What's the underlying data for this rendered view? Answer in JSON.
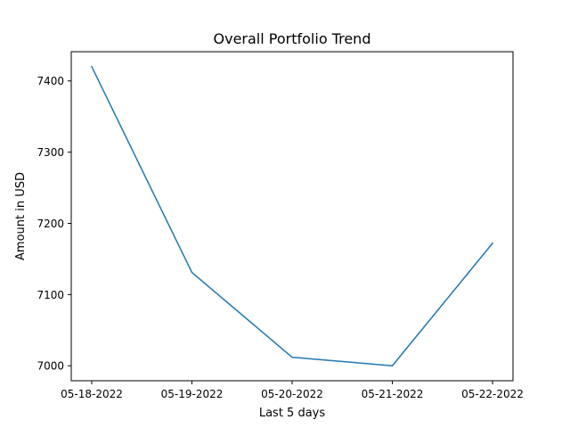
{
  "chart_data": {
    "type": "line",
    "title": "Overall Portfolio Trend",
    "xlabel": "Last 5 days",
    "ylabel": "Amount in USD",
    "categories": [
      "05-18-2022",
      "05-19-2022",
      "05-20-2022",
      "05-21-2022",
      "05-22-2022"
    ],
    "series": [
      {
        "values": [
          7420,
          7131,
          7012,
          7000,
          7172
        ]
      }
    ],
    "yticks": [
      7000,
      7100,
      7200,
      7300,
      7400
    ],
    "ylim": [
      6979,
      7441
    ],
    "grid": false,
    "line_color": "#1f77b4"
  }
}
